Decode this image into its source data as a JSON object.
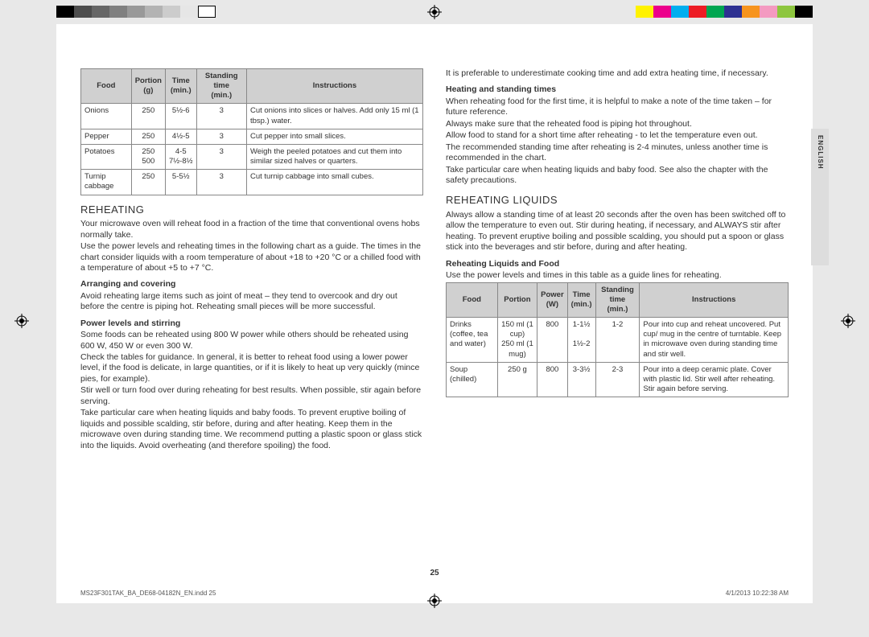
{
  "colorbar_left": [
    "#000000",
    "#4d4d4d",
    "#666666",
    "#808080",
    "#999999",
    "#b3b3b3",
    "#cccccc",
    "#e6e6e6",
    "#ffffff"
  ],
  "colorbar_right": [
    "#fff200",
    "#ec008c",
    "#00aeef",
    "#ed1c24",
    "#00a651",
    "#2e3192",
    "#f7941e",
    "#f49ac1",
    "#8dc63f",
    "#000000"
  ],
  "side_tab": "ENGLISH",
  "page_number": "25",
  "footer_left": "MS23F301TAK_BA_DE68-04182N_EN.indd   25",
  "footer_right": "4/1/2013   10:22:38 AM",
  "table1": {
    "headers": [
      "Food",
      "Portion (g)",
      "Time (min.)",
      "Standing time (min.)",
      "Instructions"
    ],
    "rows": [
      {
        "food": "Onions",
        "portion": "250",
        "time": "5½-6",
        "stand": "3",
        "instr": "Cut onions into slices or halves. Add only 15 ml (1 tbsp.) water."
      },
      {
        "food": "Pepper",
        "portion": "250",
        "time": "4½-5",
        "stand": "3",
        "instr": "Cut pepper into small slices."
      },
      {
        "food": "Potatoes",
        "portion": "250\n500",
        "time": "4-5\n7½-8½",
        "stand": "3",
        "instr": "Weigh the peeled potatoes and cut them into similar sized halves or quarters."
      },
      {
        "food": "Turnip cabbage",
        "portion": "250",
        "time": "5-5½",
        "stand": "3",
        "instr": "Cut turnip cabbage into small cubes."
      }
    ]
  },
  "left": {
    "h_reheating": "REHEATING",
    "p1": "Your microwave oven will reheat food in a fraction of the time that conventional ovens hobs normally take.",
    "p2": "Use the power levels and reheating times in the following chart as a guide. The times in the chart consider liquids with a room temperature of about +18 to +20 °C or a chilled food with a temperature of about +5 to +7 °C.",
    "sh_arr": "Arranging and covering",
    "p3": "Avoid reheating large items such as joint of meat – they tend to overcook and dry out before the centre is piping hot. Reheating small pieces will be more successful.",
    "sh_pow": "Power levels and stirring",
    "p4": "Some foods can be reheated using 800 W power while others should be reheated using 600 W, 450 W or even 300 W.",
    "p5": "Check the tables for guidance. In general, it is better to reheat food using a lower power level, if the food is delicate, in large quantities, or if it is likely to heat up very quickly (mince pies, for example).",
    "p6": "Stir well or turn food over during reheating for best results. When possible, stir again before serving.",
    "p7": "Take particular care when heating liquids and baby foods. To prevent eruptive boiling of liquids and possible scalding, stir before, during and after heating. Keep them in the microwave oven during standing time. We recommend putting a plastic spoon or glass stick into the liquids. Avoid overheating (and therefore spoiling) the food."
  },
  "right": {
    "p1": "It is preferable to underestimate cooking time and add extra heating time, if necessary.",
    "sh_heat": "Heating and standing times",
    "p2": "When reheating food for the first time, it is helpful to make a note of the time taken – for future reference.",
    "p3": "Always make sure that the reheated food is piping hot throughout.",
    "p4": "Allow food to stand for a short time after reheating - to let the temperature even out.",
    "p5": "The recommended standing time after reheating is 2-4 minutes, unless another time is recommended in the chart.",
    "p6": "Take particular care when heating liquids and baby food. See also the chapter with the safety precautions.",
    "h_liquids": "REHEATING LIQUIDS",
    "p7": "Always allow a standing time of at least 20 seconds after the oven has been switched off to allow the temperature to even out. Stir during heating, if necessary, and ALWAYS stir after heating. To prevent eruptive boiling and possible scalding, you should put a spoon or glass stick into the beverages and stir before, during and after heating.",
    "sh_rlf": "Reheating Liquids and Food",
    "p8": "Use the power levels and times in this table as a guide lines for reheating."
  },
  "table2": {
    "headers": [
      "Food",
      "Portion",
      "Power (W)",
      "Time (min.)",
      "Standing time (min.)",
      "Instructions"
    ],
    "rows": [
      {
        "food": "Drinks (coffee, tea and water)",
        "portion": "150 ml (1 cup)\n250 ml (1 mug)",
        "power": "800",
        "time": "1-1½\n\n1½-2",
        "stand": "1-2",
        "instr": "Pour into cup and reheat uncovered. Put cup/ mug in the centre of turntable. Keep in microwave oven during standing time and stir well."
      },
      {
        "food": "Soup (chilled)",
        "portion": "250 g",
        "power": "800",
        "time": "3-3½",
        "stand": "2-3",
        "instr": "Pour into a deep ceramic plate. Cover with plastic lid. Stir well after reheating. Stir again before serving."
      }
    ]
  }
}
